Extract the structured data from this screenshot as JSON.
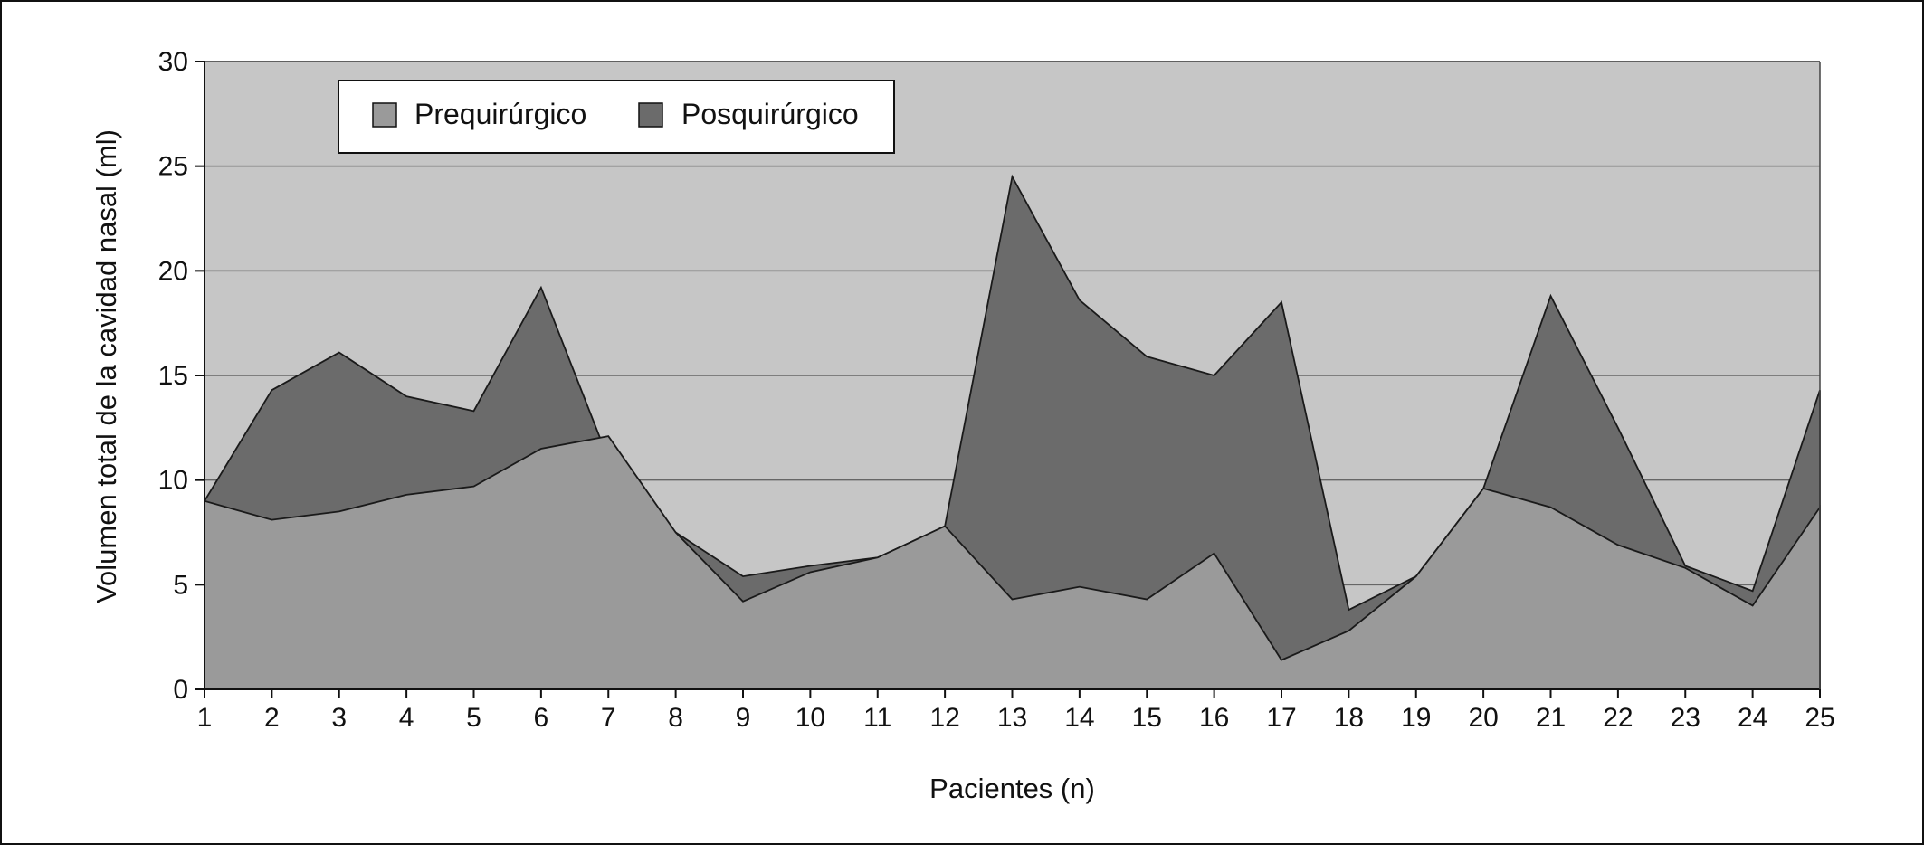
{
  "chart_data": {
    "type": "area",
    "title": "",
    "xlabel": "Pacientes (n)",
    "ylabel": "Volumen total de la cavidad nasal (ml)",
    "ylim": [
      0,
      30
    ],
    "yticks": [
      0,
      5,
      10,
      15,
      20,
      25,
      30
    ],
    "x": [
      1,
      2,
      3,
      4,
      5,
      6,
      7,
      8,
      9,
      10,
      11,
      12,
      13,
      14,
      15,
      16,
      17,
      18,
      19,
      20,
      21,
      22,
      23,
      24,
      25
    ],
    "grid": true,
    "legend": "top-left",
    "series": [
      {
        "name": "Prequirúrgico",
        "color": "#9a9a9a",
        "values": [
          9.0,
          8.1,
          8.5,
          9.3,
          9.7,
          11.5,
          12.1,
          7.5,
          4.2,
          5.6,
          6.3,
          7.8,
          4.3,
          4.9,
          4.3,
          6.5,
          1.4,
          2.8,
          5.4,
          9.6,
          8.7,
          6.9,
          5.8,
          4.0,
          8.7
        ]
      },
      {
        "name": "Posquirúrgico",
        "color": "#6b6b6b",
        "values": [
          9.0,
          14.3,
          16.1,
          14.0,
          13.3,
          19.2,
          11.0,
          7.5,
          5.4,
          5.9,
          6.3,
          7.8,
          24.5,
          18.6,
          15.9,
          15.0,
          18.5,
          3.8,
          5.4,
          9.6,
          18.8,
          12.5,
          5.9,
          4.7,
          14.3
        ]
      }
    ]
  }
}
